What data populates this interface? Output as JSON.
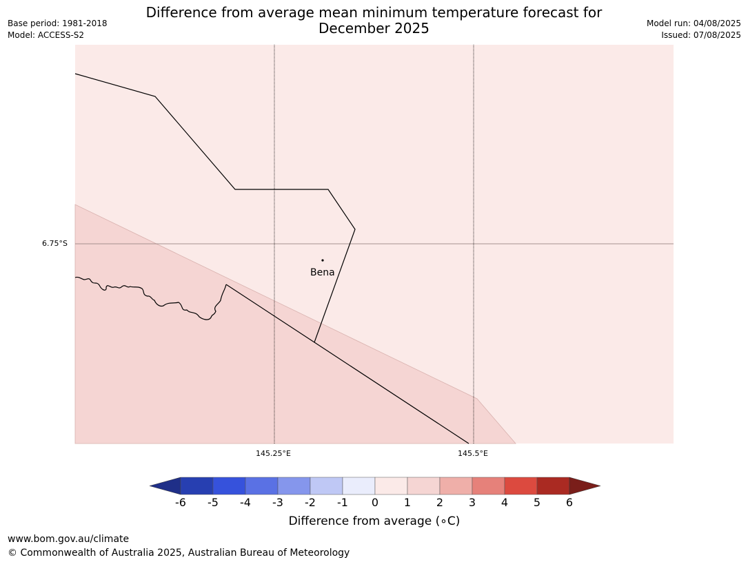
{
  "header": {
    "base_period": "Base period: 1981-2018",
    "model": "Model: ACCESS-S2",
    "title_line1": "Difference from average mean minimum temperature forecast for",
    "title_line2": "December 2025",
    "model_run": "Model run: 04/08/2025",
    "issued": "Issued: 07/08/2025"
  },
  "map": {
    "latitude_label": "6.75°S",
    "longitude_labels": [
      "145.25°E",
      "145.5°E"
    ],
    "place_name": "Bena",
    "colors": {
      "anomaly_0_to_1": "#fbeae8",
      "anomaly_1_to_2": "#f5d5d3",
      "grid_line": "#000000",
      "boundary_line": "#000000"
    }
  },
  "colorbar": {
    "label": "Difference from average (∘C)",
    "ticks": [
      "-6",
      "-5",
      "-4",
      "-3",
      "-2",
      "-1",
      "0",
      "1",
      "2",
      "3",
      "4",
      "5",
      "6"
    ],
    "colors": [
      "#1f2f88",
      "#273fb1",
      "#3652dc",
      "#5a71e4",
      "#8596ec",
      "#bfc8f5",
      "#eaedfc",
      "#fbeae8",
      "#f5d5d3",
      "#efafa9",
      "#e6817a",
      "#dc4a3f",
      "#aa2a22",
      "#7a1e1a"
    ]
  },
  "footer": {
    "url": "www.bom.gov.au/climate",
    "copyright": "© Commonwealth of Australia 2025, Australian Bureau of Meteorology"
  }
}
